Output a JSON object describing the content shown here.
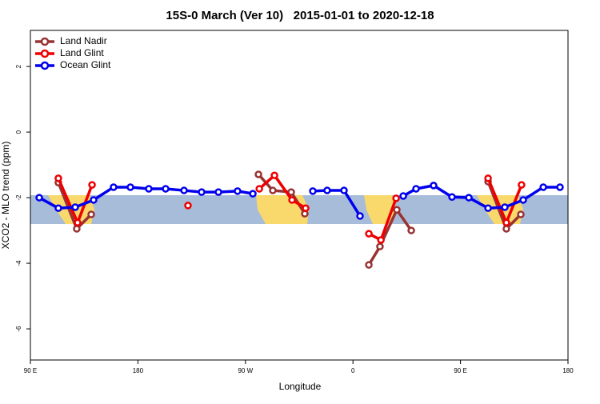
{
  "chart_data": {
    "type": "line",
    "title": "15S-0 March (Ver 10)   2015-01-01 to 2020-12-18",
    "x_label": "Longitude",
    "y_label": "XCO2 - MLO trend (ppm)",
    "xlim": [
      90,
      540
    ],
    "ylim": [
      -6.95,
      3.1
    ],
    "xticks": [
      {
        "value": 90,
        "label": "90 E"
      },
      {
        "value": 180,
        "label": "180"
      },
      {
        "value": 270,
        "label": "90 W"
      },
      {
        "value": 360,
        "label": "0"
      },
      {
        "value": 450,
        "label": "90 E"
      },
      {
        "value": 540,
        "label": "180"
      }
    ],
    "yticks": [
      -6,
      -4,
      -2,
      0,
      2
    ],
    "legend": "top-left",
    "series": [
      {
        "name": "Land Nadir",
        "color": "#993333",
        "x": [
          113.4,
          128.8,
          140.9,
          null,
          280.9,
          292.9,
          308.3,
          319.7,
          null,
          373.3,
          382.6,
          396.7,
          408.8,
          null,
          473.1,
          488.4,
          500.5
        ],
        "values": [
          -1.54,
          -2.95,
          -2.51,
          null,
          -1.29,
          -1.78,
          -1.83,
          -2.49,
          null,
          -4.05,
          -3.49,
          -2.37,
          -3.0,
          null,
          -1.51,
          -2.95,
          -2.51
        ]
      },
      {
        "name": "Land Glint",
        "color": "#ee0000",
        "x": [
          113.4,
          129.5,
          141.6,
          null,
          221.9,
          null,
          281.6,
          294.3,
          309.0,
          320.4,
          null,
          373.3,
          383.4,
          396.1,
          null,
          473.1,
          488.4,
          501.1
        ],
        "values": [
          -1.41,
          -2.76,
          -1.61,
          null,
          -2.24,
          null,
          -1.73,
          -1.32,
          -2.07,
          -2.32,
          null,
          -3.1,
          -3.29,
          -2.02,
          null,
          -1.41,
          -2.76,
          -1.61
        ]
      },
      {
        "name": "Ocean Glint",
        "color": "#0000ee",
        "x": [
          97.4,
          113.4,
          127.5,
          142.9,
          159.6,
          173.7,
          189.1,
          203.2,
          218.6,
          233.3,
          247.4,
          263.4,
          276.2,
          null,
          326.4,
          338.4,
          352.5,
          365.9,
          null,
          402.1,
          412.8,
          427.5,
          442.9,
          457.0,
          473.1,
          487.1,
          502.5,
          519.3,
          533.3
        ],
        "values": [
          -2.0,
          -2.32,
          -2.29,
          -2.07,
          -1.68,
          -1.68,
          -1.73,
          -1.73,
          -1.78,
          -1.83,
          -1.83,
          -1.8,
          -1.88,
          null,
          -1.8,
          -1.78,
          -1.78,
          -2.56,
          null,
          -1.95,
          -1.73,
          -1.63,
          -1.98,
          -2.0,
          -2.32,
          -2.29,
          -2.07,
          -1.68,
          -1.68
        ]
      }
    ]
  }
}
